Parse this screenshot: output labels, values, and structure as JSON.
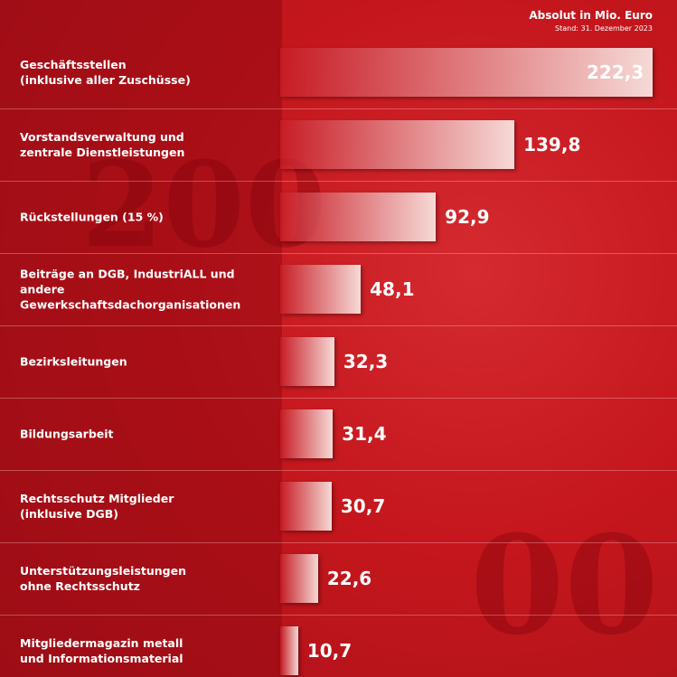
{
  "chart_data": {
    "type": "hbar",
    "unit_note": "Absolut in Mio. Euro",
    "date_note": "Stand: 31. Dezember 2023",
    "categories": [
      "Geschäftsstellen\n(inklusive aller Zuschüsse)",
      "Vorstandsverwaltung und\nzentrale Dienstleistungen",
      "Rückstellungen (15 %)",
      "Beiträge an DGB, IndustriALL und andere\nGewerkschaftsdachorganisationen",
      "Bezirksleitungen",
      "Bildungsarbeit",
      "Rechtsschutz Mitglieder\n(inklusive DGB)",
      "Unterstützungsleistungen\nohne Rechtsschutz",
      "Mitgliedermagazin metall\nund Informationsmaterial"
    ],
    "values": [
      222.3,
      139.8,
      92.9,
      48.1,
      32.3,
      31.4,
      30.7,
      22.6,
      10.7
    ],
    "value_labels": [
      "222,3",
      "139,8",
      "92,9",
      "48,1",
      "32,3",
      "31,4",
      "30,7",
      "22,6",
      "10,7"
    ]
  }
}
